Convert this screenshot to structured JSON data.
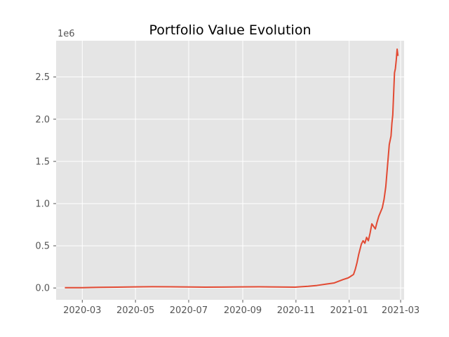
{
  "chart_data": {
    "type": "line",
    "title": "Portfolio Value Evolution",
    "xlabel": "",
    "ylabel": "",
    "y_offset_label": "1e6",
    "x_axis_type": "date",
    "xlim": [
      "2020-01-31",
      "2021-03-05"
    ],
    "ylim": [
      -0.14,
      2.93
    ],
    "y_scale_factor": 1000000,
    "grid": true,
    "style": "ggplot",
    "x_ticks": [
      "2020-03",
      "2020-05",
      "2020-07",
      "2020-09",
      "2020-11",
      "2021-01",
      "2021-03"
    ],
    "y_ticks": [
      "0.0",
      "0.5",
      "1.0",
      "1.5",
      "2.0",
      "2.5"
    ],
    "y_tick_values": [
      0.0,
      0.5,
      1.0,
      1.5,
      2.0,
      2.5
    ],
    "series": [
      {
        "color": "#E24A33",
        "x": [
          "2020-02-10",
          "2020-03-01",
          "2020-03-20",
          "2020-04-10",
          "2020-05-01",
          "2020-05-20",
          "2020-06-10",
          "2020-07-01",
          "2020-07-20",
          "2020-08-10",
          "2020-09-01",
          "2020-09-20",
          "2020-10-10",
          "2020-10-31",
          "2020-11-15",
          "2020-11-25",
          "2020-12-05",
          "2020-12-15",
          "2020-12-20",
          "2020-12-25",
          "2020-12-31",
          "2021-01-03",
          "2021-01-06",
          "2021-01-08",
          "2021-01-10",
          "2021-01-12",
          "2021-01-15",
          "2021-01-17",
          "2021-01-19",
          "2021-01-21",
          "2021-01-23",
          "2021-01-25",
          "2021-01-27",
          "2021-01-29",
          "2021-01-31",
          "2021-02-02",
          "2021-02-04",
          "2021-02-06",
          "2021-02-08",
          "2021-02-10",
          "2021-02-12",
          "2021-02-14",
          "2021-02-16",
          "2021-02-18",
          "2021-02-19",
          "2021-02-20",
          "2021-02-21",
          "2021-02-22",
          "2021-02-23",
          "2021-02-24",
          "2021-02-25",
          "2021-02-26"
        ],
        "y": [
          0.003,
          0.004,
          0.008,
          0.01,
          0.013,
          0.015,
          0.014,
          0.012,
          0.01,
          0.011,
          0.013,
          0.014,
          0.012,
          0.01,
          0.02,
          0.03,
          0.045,
          0.06,
          0.08,
          0.1,
          0.12,
          0.14,
          0.16,
          0.22,
          0.3,
          0.4,
          0.52,
          0.56,
          0.53,
          0.6,
          0.56,
          0.65,
          0.76,
          0.73,
          0.7,
          0.78,
          0.85,
          0.9,
          0.95,
          1.05,
          1.2,
          1.45,
          1.7,
          1.8,
          1.95,
          2.05,
          2.3,
          2.55,
          2.6,
          2.7,
          2.83,
          2.75
        ]
      }
    ]
  }
}
